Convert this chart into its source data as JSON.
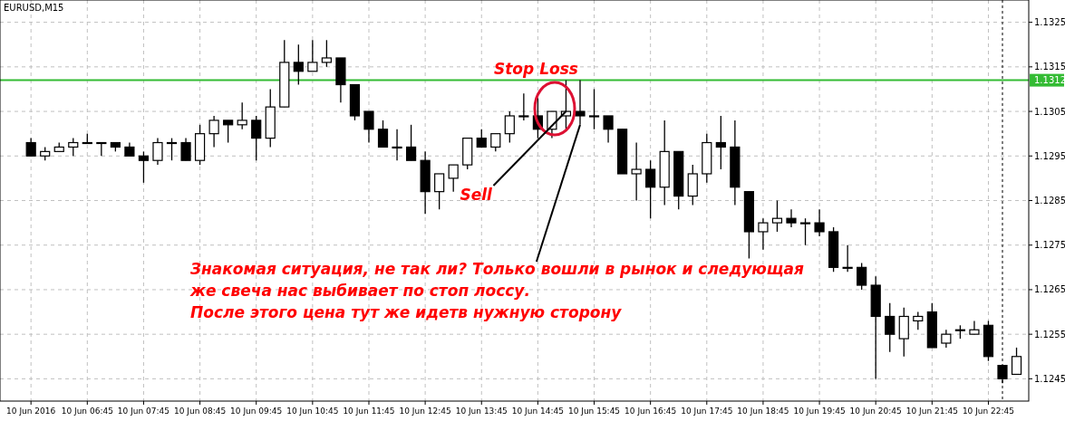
{
  "chart_data": {
    "type": "candlestick",
    "title": "EURUSD,M15",
    "x": [
      "2016-06-10T05:45",
      "2016-06-10T06:00",
      "2016-06-10T06:15",
      "2016-06-10T06:30",
      "2016-06-10T06:45",
      "2016-06-10T07:00",
      "2016-06-10T07:15",
      "2016-06-10T07:30",
      "2016-06-10T07:45",
      "2016-06-10T08:00",
      "2016-06-10T08:15",
      "2016-06-10T08:30",
      "2016-06-10T08:45",
      "2016-06-10T09:00",
      "2016-06-10T09:15",
      "2016-06-10T09:30",
      "2016-06-10T09:45",
      "2016-06-10T10:00",
      "2016-06-10T10:15",
      "2016-06-10T10:30",
      "2016-06-10T10:45",
      "2016-06-10T11:00",
      "2016-06-10T11:15",
      "2016-06-10T11:30",
      "2016-06-10T11:45",
      "2016-06-10T12:00",
      "2016-06-10T12:15",
      "2016-06-10T12:30",
      "2016-06-10T12:45",
      "2016-06-10T13:00",
      "2016-06-10T13:15",
      "2016-06-10T13:30",
      "2016-06-10T13:45",
      "2016-06-10T14:00",
      "2016-06-10T14:15",
      "2016-06-10T14:30",
      "2016-06-10T14:45",
      "2016-06-10T15:00",
      "2016-06-10T15:15",
      "2016-06-10T15:30",
      "2016-06-10T15:45",
      "2016-06-10T16:00",
      "2016-06-10T16:15",
      "2016-06-10T16:30",
      "2016-06-10T16:45",
      "2016-06-10T17:00",
      "2016-06-10T17:15",
      "2016-06-10T17:30",
      "2016-06-10T17:45",
      "2016-06-10T18:00",
      "2016-06-10T18:15",
      "2016-06-10T18:30",
      "2016-06-10T18:45",
      "2016-06-10T19:00",
      "2016-06-10T19:15",
      "2016-06-10T19:30",
      "2016-06-10T19:45",
      "2016-06-10T20:00",
      "2016-06-10T20:15",
      "2016-06-10T20:30",
      "2016-06-10T20:45",
      "2016-06-10T21:00",
      "2016-06-10T21:15",
      "2016-06-10T21:30",
      "2016-06-10T21:45",
      "2016-06-10T22:00",
      "2016-06-10T22:15",
      "2016-06-10T22:30",
      "2016-06-10T22:45",
      "2016-06-10T23:00",
      "2016-06-10T23:15"
    ],
    "ohlc": [
      [
        1.1298,
        1.1299,
        1.1295,
        1.1295
      ],
      [
        1.1295,
        1.1297,
        1.1294,
        1.1296
      ],
      [
        1.1296,
        1.1298,
        1.1296,
        1.1297
      ],
      [
        1.1297,
        1.1299,
        1.1295,
        1.1298
      ],
      [
        1.1298,
        1.13,
        1.1298,
        1.1298
      ],
      [
        1.1298,
        1.1298,
        1.1295,
        1.1298
      ],
      [
        1.1298,
        1.1298,
        1.1296,
        1.1297
      ],
      [
        1.1297,
        1.1298,
        1.1295,
        1.1295
      ],
      [
        1.1295,
        1.1296,
        1.1289,
        1.1294
      ],
      [
        1.1294,
        1.1299,
        1.1293,
        1.1298
      ],
      [
        1.1298,
        1.1299,
        1.1294,
        1.1298
      ],
      [
        1.1298,
        1.1299,
        1.1294,
        1.1294
      ],
      [
        1.1294,
        1.1302,
        1.1293,
        1.13
      ],
      [
        1.13,
        1.1304,
        1.1297,
        1.1303
      ],
      [
        1.1303,
        1.1303,
        1.1298,
        1.1302
      ],
      [
        1.1302,
        1.1307,
        1.1301,
        1.1303
      ],
      [
        1.1303,
        1.1304,
        1.1294,
        1.1299
      ],
      [
        1.1299,
        1.131,
        1.1297,
        1.1306
      ],
      [
        1.1306,
        1.1321,
        1.1306,
        1.1316
      ],
      [
        1.1316,
        1.132,
        1.1311,
        1.1314
      ],
      [
        1.1314,
        1.1321,
        1.1314,
        1.1316
      ],
      [
        1.1316,
        1.1321,
        1.1315,
        1.1317
      ],
      [
        1.1317,
        1.1317,
        1.1307,
        1.1311
      ],
      [
        1.1311,
        1.1311,
        1.1303,
        1.1304
      ],
      [
        1.1305,
        1.1305,
        1.1298,
        1.1301
      ],
      [
        1.1301,
        1.1303,
        1.1297,
        1.1297
      ],
      [
        1.1297,
        1.1301,
        1.1294,
        1.1297
      ],
      [
        1.1297,
        1.1302,
        1.1294,
        1.1294
      ],
      [
        1.1294,
        1.1296,
        1.1282,
        1.1287
      ],
      [
        1.1287,
        1.1291,
        1.1283,
        1.1291
      ],
      [
        1.129,
        1.1293,
        1.1287,
        1.1293
      ],
      [
        1.1293,
        1.1299,
        1.1292,
        1.1299
      ],
      [
        1.1299,
        1.1301,
        1.1297,
        1.1297
      ],
      [
        1.1297,
        1.13,
        1.1296,
        1.13
      ],
      [
        1.13,
        1.1305,
        1.1298,
        1.1304
      ],
      [
        1.1304,
        1.1309,
        1.1303,
        1.1304
      ],
      [
        1.1304,
        1.1308,
        1.1299,
        1.1301
      ],
      [
        1.1301,
        1.1305,
        1.1299,
        1.1305
      ],
      [
        1.1304,
        1.1312,
        1.1301,
        1.1305
      ],
      [
        1.1305,
        1.1312,
        1.1302,
        1.1304
      ],
      [
        1.1304,
        1.131,
        1.1301,
        1.1304
      ],
      [
        1.1304,
        1.1304,
        1.1298,
        1.1301
      ],
      [
        1.1301,
        1.1301,
        1.1291,
        1.1291
      ],
      [
        1.1291,
        1.1298,
        1.1285,
        1.1292
      ],
      [
        1.1292,
        1.1294,
        1.1281,
        1.1288
      ],
      [
        1.1288,
        1.1303,
        1.1284,
        1.1296
      ],
      [
        1.1296,
        1.1296,
        1.1283,
        1.1286
      ],
      [
        1.1286,
        1.1293,
        1.1284,
        1.1291
      ],
      [
        1.1291,
        1.13,
        1.1289,
        1.1298
      ],
      [
        1.1298,
        1.1304,
        1.1292,
        1.1297
      ],
      [
        1.1297,
        1.1303,
        1.1284,
        1.1288
      ],
      [
        1.1287,
        1.1287,
        1.1272,
        1.1278
      ],
      [
        1.1278,
        1.1281,
        1.1274,
        1.128
      ],
      [
        1.128,
        1.1285,
        1.1278,
        1.1281
      ],
      [
        1.1281,
        1.1283,
        1.1279,
        1.128
      ],
      [
        1.128,
        1.1281,
        1.1275,
        1.128
      ],
      [
        1.128,
        1.1283,
        1.1277,
        1.1278
      ],
      [
        1.1278,
        1.1279,
        1.1269,
        1.127
      ],
      [
        1.127,
        1.1275,
        1.1269,
        1.127
      ],
      [
        1.127,
        1.1271,
        1.1265,
        1.1266
      ],
      [
        1.1266,
        1.1268,
        1.1245,
        1.1259
      ],
      [
        1.1259,
        1.1262,
        1.1251,
        1.1255
      ],
      [
        1.1254,
        1.1261,
        1.125,
        1.1259
      ],
      [
        1.1258,
        1.126,
        1.1256,
        1.1259
      ],
      [
        1.126,
        1.1262,
        1.1252,
        1.1252
      ],
      [
        1.1253,
        1.1256,
        1.1252,
        1.1255
      ],
      [
        1.1256,
        1.1257,
        1.1254,
        1.1256
      ],
      [
        1.1255,
        1.1258,
        1.1255,
        1.1256
      ],
      [
        1.1257,
        1.1258,
        1.1249,
        1.125
      ],
      [
        1.1248,
        1.1248,
        1.1244,
        1.1245
      ],
      [
        1.1246,
        1.1252,
        1.1246,
        1.125
      ]
    ],
    "xlim": [
      "2016-06-10T05:12",
      "2016-06-10T23:28"
    ],
    "xticks": [
      {
        "value": "2016-06-10T05:45",
        "label": "10 Jun 2016"
      },
      {
        "value": "2016-06-10T06:45",
        "label": "10 Jun 06:45"
      },
      {
        "value": "2016-06-10T07:45",
        "label": "10 Jun 07:45"
      },
      {
        "value": "2016-06-10T08:45",
        "label": "10 Jun 08:45"
      },
      {
        "value": "2016-06-10T09:45",
        "label": "10 Jun 09:45"
      },
      {
        "value": "2016-06-10T10:45",
        "label": "10 Jun 10:45"
      },
      {
        "value": "2016-06-10T11:45",
        "label": "10 Jun 11:45"
      },
      {
        "value": "2016-06-10T12:45",
        "label": "10 Jun 12:45"
      },
      {
        "value": "2016-06-10T13:45",
        "label": "10 Jun 13:45"
      },
      {
        "value": "2016-06-10T14:45",
        "label": "10 Jun 14:45"
      },
      {
        "value": "2016-06-10T15:45",
        "label": "10 Jun 15:45"
      },
      {
        "value": "2016-06-10T16:45",
        "label": "10 Jun 16:45"
      },
      {
        "value": "2016-06-10T17:45",
        "label": "10 Jun 17:45"
      },
      {
        "value": "2016-06-10T18:45",
        "label": "10 Jun 18:45"
      },
      {
        "value": "2016-06-10T19:45",
        "label": "10 Jun 19:45"
      },
      {
        "value": "2016-06-10T20:45",
        "label": "10 Jun 20:45"
      },
      {
        "value": "2016-06-10T21:45",
        "label": "10 Jun 21:45"
      },
      {
        "value": "2016-06-10T22:45",
        "label": "10 Jun 22:45"
      }
    ],
    "ylim": [
      1.124,
      1.133
    ],
    "yticks": [
      1.1245,
      1.1255,
      1.1265,
      1.1275,
      1.1285,
      1.1295,
      1.1305,
      1.1315,
      1.1325
    ],
    "grid": true,
    "ref_lines": [
      {
        "axis": "y",
        "value": 1.1312,
        "label": "1.1312",
        "color": "#33bb33",
        "line_style": "solid"
      },
      {
        "axis": "x",
        "value": "2016-06-10T23:00",
        "label": null,
        "color": "#000000",
        "line_style": "dotted"
      }
    ],
    "annotations": [
      "Stop Loss",
      {
        "text": "Sell",
        "x": "2016-06-10T15:15",
        "y": 1.1305
      },
      {
        "text": "Знакомая ситуация, не так ли? Только вошли в рынок и следующая\nже свеча нас выбивает по стоп лоссу.\nПосле этого цена тут же идетв нужную сторону",
        "x": "2016-06-10T15:30",
        "y": 1.1302
      }
    ]
  }
}
